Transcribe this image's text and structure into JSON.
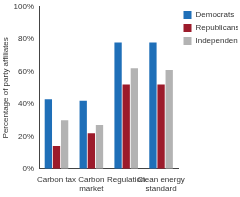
{
  "chart_data": {
    "type": "bar",
    "y_label": "Percentage of party affiliates",
    "categories": [
      "Carbon tax",
      "Carbon market",
      "Regulation",
      "Clean energy standard"
    ],
    "series": [
      {
        "name": "Democrats",
        "color": "#1f6fb8",
        "values": [
          43,
          42,
          78,
          78
        ]
      },
      {
        "name": "Republicans",
        "color": "#9c1b2b",
        "values": [
          14,
          22,
          52,
          52
        ]
      },
      {
        "name": "Independents",
        "color": "#b3b3b3",
        "values": [
          30,
          27,
          62,
          61
        ]
      }
    ],
    "ylim": [
      0,
      100
    ],
    "yticks": [
      {
        "value": 0,
        "label": "0%"
      },
      {
        "value": 20,
        "label": "20%"
      },
      {
        "value": 40,
        "label": "40%"
      },
      {
        "value": 60,
        "label": "60%"
      },
      {
        "value": 80,
        "label": "80%"
      },
      {
        "value": 100,
        "label": "100%"
      }
    ],
    "grid": false,
    "legend": "right"
  }
}
